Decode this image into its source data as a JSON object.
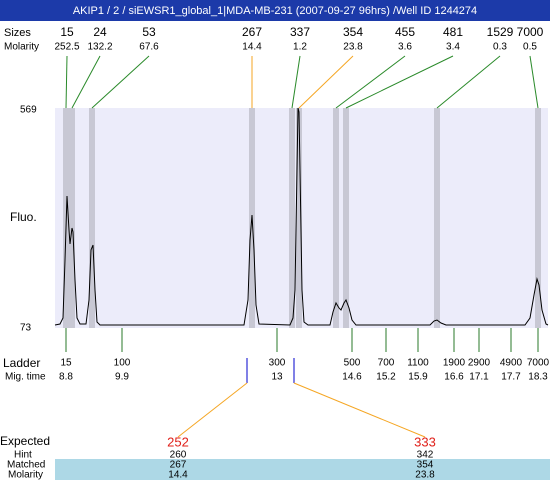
{
  "title": "AKIP1 / 2 / siEWSR1_global_1|MDA-MB-231 (2007-09-27 96hrs) /Well ID 1244274",
  "top": {
    "size_label": "Sizes",
    "molarity_label": "Molarity",
    "peaks": [
      {
        "size": 15,
        "molarity": 252.5
      },
      {
        "size": 24,
        "molarity": 132.2
      },
      {
        "size": 53,
        "molarity": 67.6
      },
      {
        "size": 267,
        "molarity": 14.4
      },
      {
        "size": 337,
        "molarity": 1.2
      },
      {
        "size": 354,
        "molarity": 23.8
      },
      {
        "size": 455,
        "molarity": 3.6
      },
      {
        "size": 481,
        "molarity": 3.4
      },
      {
        "size": 1529,
        "molarity": 0.3
      },
      {
        "size": 7000,
        "molarity": 0.5
      }
    ]
  },
  "plot": {
    "y_label": "Fluo.",
    "y_max": 569,
    "y_min": 73
  },
  "ladder": {
    "label": "Ladder",
    "time_label": "Mig. time",
    "entries": [
      {
        "size": 15,
        "time": 8.8
      },
      {
        "size": 100,
        "time": 9.9
      },
      {
        "size": 300,
        "time": 13
      },
      {
        "size": 500,
        "time": 14.6
      },
      {
        "size": 700,
        "time": 15.2
      },
      {
        "size": 1100,
        "time": 15.9
      },
      {
        "size": 1900,
        "time": 16.6
      },
      {
        "size": 2900,
        "time": 17.1
      },
      {
        "size": 4900,
        "time": 17.7
      },
      {
        "size": 7000,
        "time": 18.3
      }
    ]
  },
  "expected": {
    "label": "Expected",
    "hint_label": "Hint",
    "matched_label": "Matched",
    "molarity_label": "Molarity",
    "columns": [
      {
        "expected": 252,
        "hint": 260,
        "matched": 267,
        "molarity": 14.4
      },
      {
        "expected": 333,
        "hint": 342,
        "matched": 354,
        "molarity": 23.8
      }
    ]
  }
}
